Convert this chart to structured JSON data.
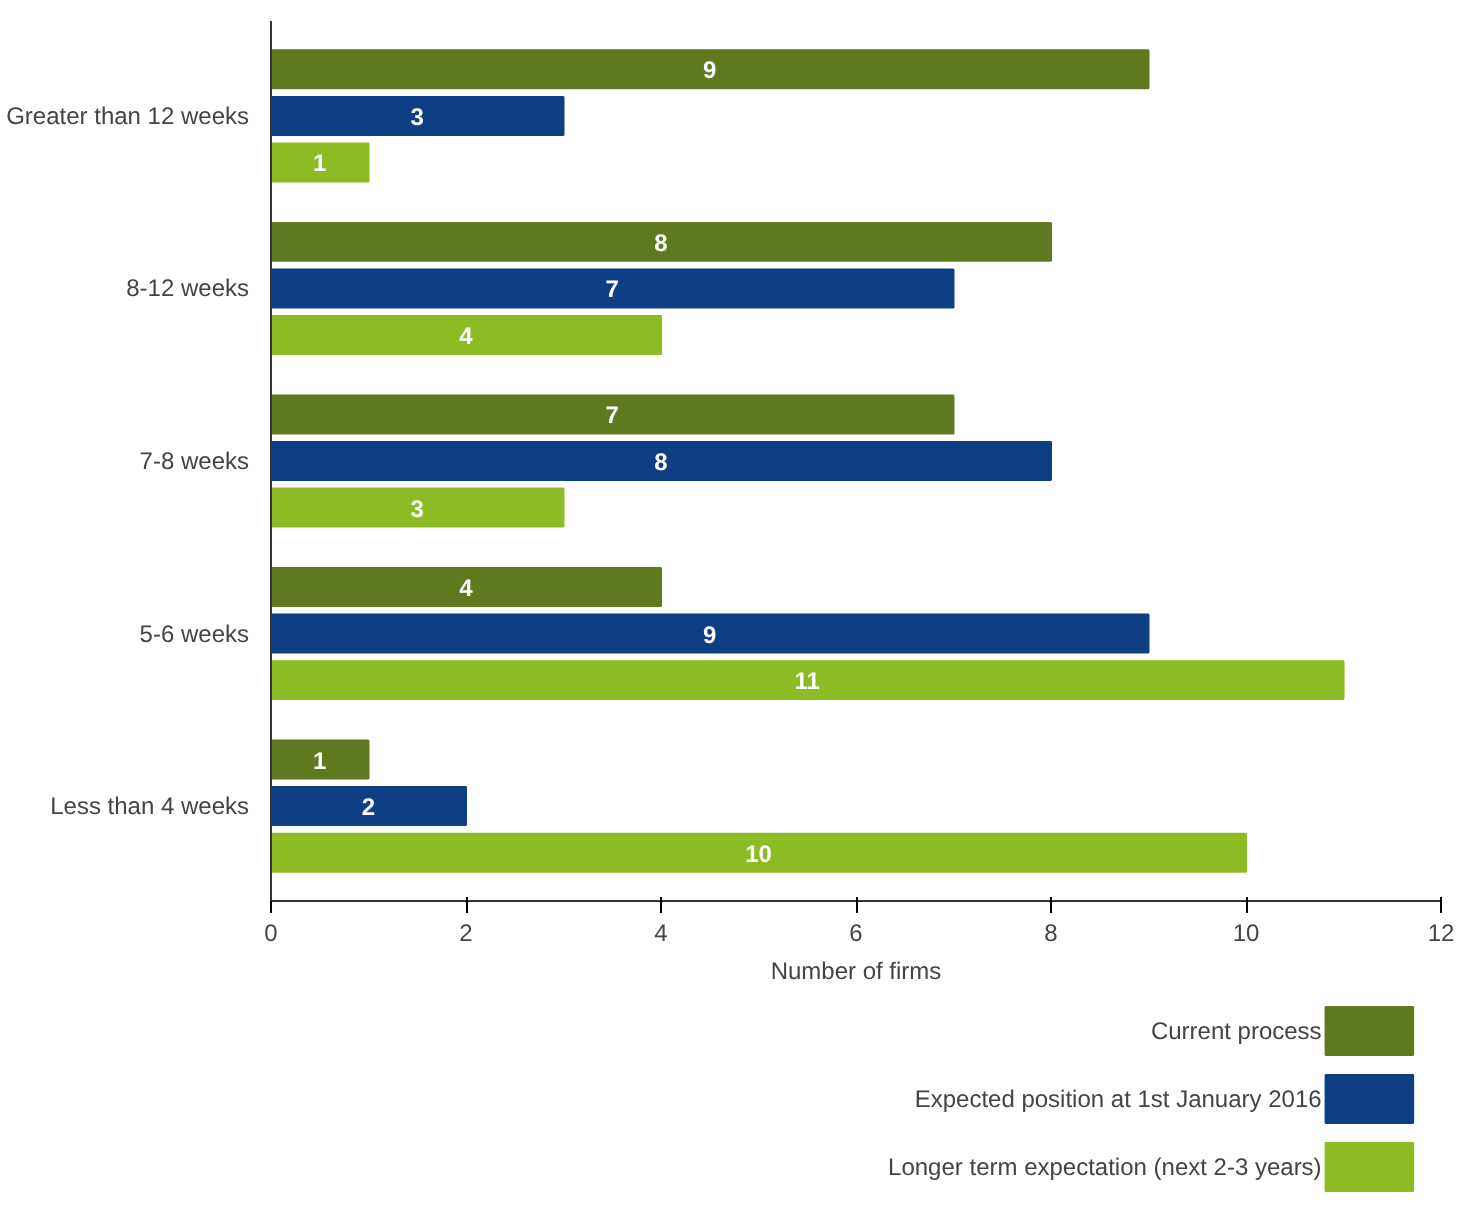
{
  "chart_data": {
    "type": "bar",
    "orientation": "horizontal",
    "categories": [
      "Greater than 12 weeks",
      "8-12 weeks",
      "7-8 weeks",
      "5-6 weeks",
      "Less than 4 weeks"
    ],
    "series": [
      {
        "name": "Current process",
        "color": "#5f7a1e",
        "values": [
          9,
          8,
          7,
          4,
          1
        ]
      },
      {
        "name": "Expected position at 1st January 2016",
        "color": "#0e3f84",
        "values": [
          3,
          7,
          8,
          9,
          2
        ]
      },
      {
        "name": "Longer term expectation (next 2-3 years)",
        "color": "#8cbb24",
        "values": [
          1,
          4,
          3,
          11,
          10
        ]
      }
    ],
    "xlabel": "Number of firms",
    "xlim": [
      0,
      12
    ],
    "xticks": [
      0,
      2,
      4,
      6,
      8,
      10,
      12
    ],
    "grid": false,
    "legend": "bottom right",
    "data_labels": true
  }
}
